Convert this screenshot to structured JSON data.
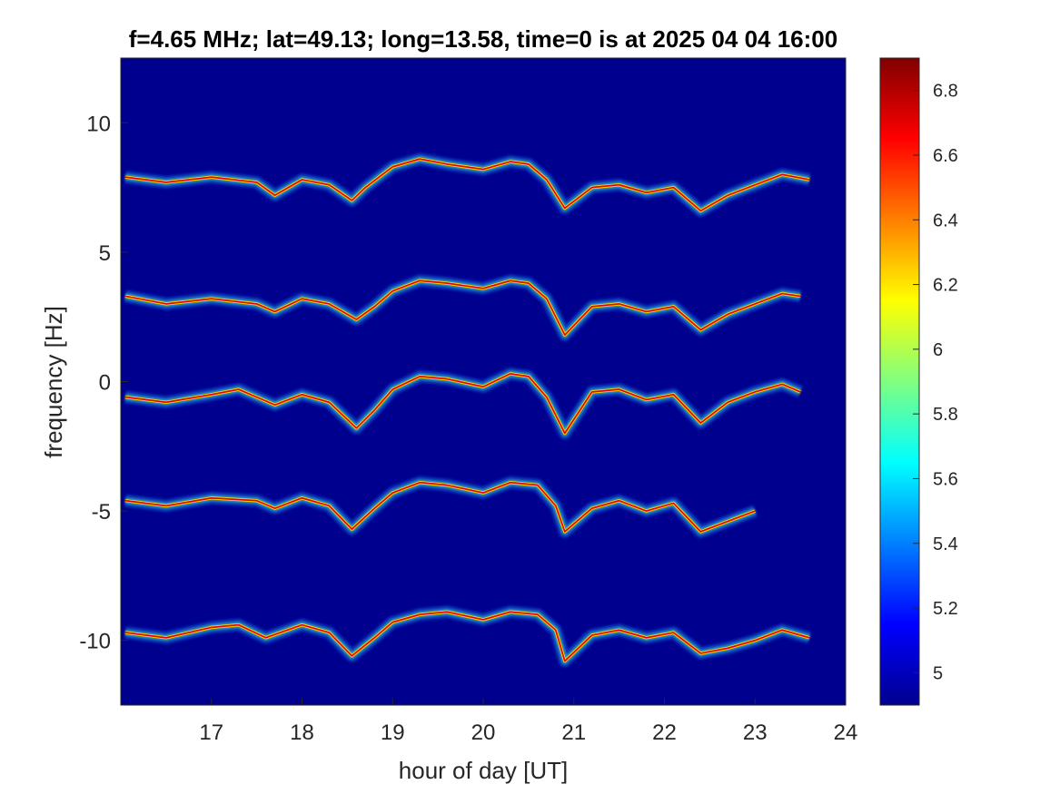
{
  "chart_data": {
    "type": "heatmap",
    "title": "f=4.65 MHz;  lat=49.13; long=13.58, time=0 is at 2025 04 04 16:00",
    "xlabel": "hour of day [UT]",
    "ylabel": "frequency [Hz]",
    "xlim": [
      16,
      24
    ],
    "ylim": [
      -12.5,
      12.5
    ],
    "x_ticks": [
      17,
      18,
      19,
      20,
      21,
      22,
      23,
      24
    ],
    "y_ticks": [
      10,
      5,
      0,
      -5,
      -10
    ],
    "colorbar": {
      "range": [
        4.9,
        6.9
      ],
      "ticks": [
        "6.8",
        "6.6",
        "6.4",
        "6.2",
        "6",
        "5.8",
        "5.6",
        "5.4",
        "5.2",
        "5"
      ],
      "tick_values": [
        6.8,
        6.6,
        6.4,
        6.2,
        6.0,
        5.8,
        5.6,
        5.4,
        5.2,
        5.0
      ]
    },
    "colormap": "jet",
    "background_color": "#00008f",
    "series": [
      {
        "x": [
          16.05,
          16.5,
          17.0,
          17.5,
          17.7,
          18.0,
          18.3,
          18.55,
          18.7,
          19.0,
          19.3,
          19.6,
          20.0,
          20.3,
          20.5,
          20.7,
          20.9,
          21.2,
          21.5,
          21.8,
          22.1,
          22.4,
          22.7,
          23.0,
          23.3,
          23.6
        ],
        "y": [
          7.9,
          7.7,
          7.9,
          7.7,
          7.2,
          7.8,
          7.6,
          7.0,
          7.5,
          8.3,
          8.6,
          8.4,
          8.2,
          8.5,
          8.4,
          7.8,
          6.7,
          7.5,
          7.6,
          7.3,
          7.5,
          6.6,
          7.2,
          7.6,
          8.0,
          7.8
        ]
      },
      {
        "x": [
          16.05,
          16.5,
          17.0,
          17.5,
          17.7,
          18.0,
          18.3,
          18.6,
          18.8,
          19.0,
          19.3,
          19.6,
          20.0,
          20.3,
          20.5,
          20.7,
          20.9,
          21.2,
          21.5,
          21.8,
          22.1,
          22.4,
          22.7,
          23.0,
          23.3,
          23.5
        ],
        "y": [
          3.3,
          3.0,
          3.2,
          3.0,
          2.7,
          3.2,
          3.0,
          2.4,
          2.9,
          3.5,
          3.9,
          3.8,
          3.6,
          3.9,
          3.8,
          3.2,
          1.8,
          2.9,
          3.0,
          2.7,
          2.9,
          2.0,
          2.6,
          3.0,
          3.4,
          3.3
        ]
      },
      {
        "x": [
          16.05,
          16.5,
          17.0,
          17.3,
          17.7,
          18.0,
          18.3,
          18.6,
          18.8,
          19.0,
          19.3,
          19.6,
          20.0,
          20.3,
          20.5,
          20.7,
          20.9,
          21.2,
          21.5,
          21.8,
          22.1,
          22.4,
          22.7,
          23.0,
          23.3,
          23.5
        ],
        "y": [
          -0.6,
          -0.8,
          -0.5,
          -0.3,
          -0.9,
          -0.5,
          -0.8,
          -1.8,
          -1.1,
          -0.3,
          0.2,
          0.1,
          -0.2,
          0.3,
          0.2,
          -0.6,
          -2.0,
          -0.4,
          -0.3,
          -0.7,
          -0.5,
          -1.6,
          -0.8,
          -0.4,
          -0.1,
          -0.4
        ]
      },
      {
        "x": [
          16.05,
          16.5,
          17.0,
          17.5,
          17.7,
          18.0,
          18.3,
          18.55,
          18.8,
          19.0,
          19.3,
          19.6,
          20.0,
          20.3,
          20.6,
          20.8,
          20.9,
          21.2,
          21.5,
          21.8,
          22.1,
          22.4,
          22.7,
          23.0
        ],
        "y": [
          -4.6,
          -4.8,
          -4.5,
          -4.6,
          -4.9,
          -4.5,
          -4.8,
          -5.7,
          -4.9,
          -4.3,
          -3.9,
          -4.0,
          -4.3,
          -3.9,
          -4.0,
          -4.8,
          -5.8,
          -4.9,
          -4.6,
          -5.0,
          -4.7,
          -5.8,
          -5.4,
          -5.0
        ]
      },
      {
        "x": [
          16.05,
          16.5,
          17.0,
          17.3,
          17.6,
          18.0,
          18.3,
          18.55,
          18.8,
          19.0,
          19.3,
          19.6,
          20.0,
          20.3,
          20.6,
          20.8,
          20.9,
          21.2,
          21.5,
          21.8,
          22.1,
          22.4,
          22.7,
          23.0,
          23.3,
          23.6
        ],
        "y": [
          -9.7,
          -9.9,
          -9.5,
          -9.4,
          -9.9,
          -9.4,
          -9.7,
          -10.6,
          -9.9,
          -9.3,
          -9.0,
          -8.9,
          -9.2,
          -8.9,
          -9.0,
          -9.6,
          -10.8,
          -9.8,
          -9.6,
          -9.9,
          -9.7,
          -10.5,
          -10.3,
          -10.0,
          -9.6,
          -9.9
        ]
      }
    ]
  }
}
